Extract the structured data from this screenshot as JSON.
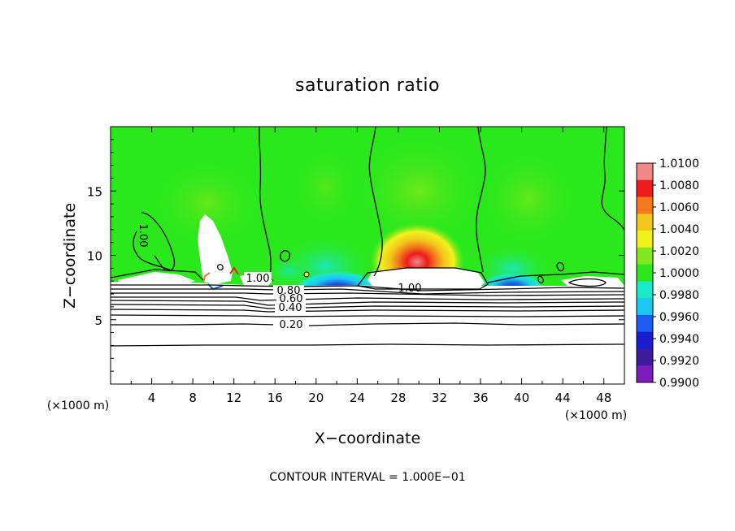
{
  "chart_data": {
    "type": "heatmap",
    "title": "saturation ratio",
    "xlabel": "X−coordinate",
    "ylabel": "Z−coordinate",
    "x_unit": "(×1000 m)",
    "z_unit": "(×1000 m)",
    "xlim": [
      0,
      50
    ],
    "ylim": [
      0,
      20
    ],
    "x_ticks": [
      "4",
      "8",
      "12",
      "16",
      "20",
      "24",
      "28",
      "32",
      "36",
      "40",
      "44",
      "48"
    ],
    "x_tick_values": [
      4,
      8,
      12,
      16,
      20,
      24,
      28,
      32,
      36,
      40,
      44,
      48
    ],
    "y_ticks": [
      "5",
      "10",
      "15"
    ],
    "y_tick_values": [
      5,
      10,
      15
    ],
    "colorbar": {
      "labels": [
        "1.0100",
        "1.0080",
        "1.0060",
        "1.0040",
        "1.0020",
        "1.0000",
        "0.9980",
        "0.9960",
        "0.9940",
        "0.9920",
        "0.9900"
      ],
      "colors": [
        "#f08888",
        "#ee1c1c",
        "#f27a1c",
        "#f2c81c",
        "#f2f21c",
        "#80e81c",
        "#2ae81c",
        "#1ce8cc",
        "#1cc8f0",
        "#1c5cf0",
        "#1c1cd0",
        "#3c1c9c",
        "#7c1cbc"
      ]
    },
    "contour_labels": [
      "1.00",
      "1.00",
      "1.00",
      "0.80",
      "0.60",
      "0.40",
      "0.20"
    ],
    "contour_interval_text": "CONTOUR INTERVAL = 1.000E−01",
    "notes": {
      "max_region": "around x=30, z≈11 (about 1.008–1.010)",
      "min_region": "around x=20–24, z≈8.5 (about 0.992)"
    }
  }
}
